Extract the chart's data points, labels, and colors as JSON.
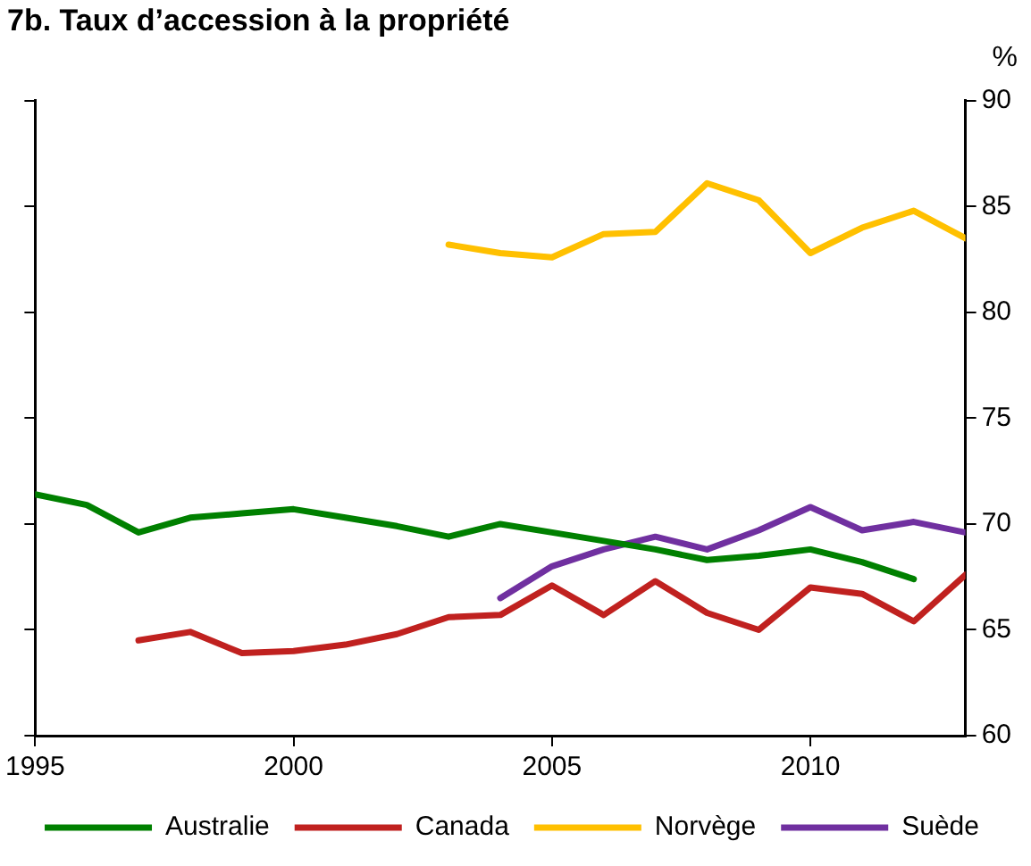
{
  "chart_data": {
    "type": "line",
    "title": "7b. Taux d’accession à la propriété",
    "ylabel": "%",
    "xlim": [
      1995,
      2013
    ],
    "xticks": [
      1995,
      2000,
      2005,
      2010
    ],
    "ylim": [
      60,
      90
    ],
    "yticks": [
      60,
      65,
      70,
      75,
      80,
      85,
      90
    ],
    "grid": false,
    "legend": "bottom",
    "marker": "none",
    "line_style": "solid",
    "series": [
      {
        "name": "Australie",
        "color": "#008000",
        "x": [
          1995,
          1996,
          1997,
          1998,
          1999,
          2000,
          2001,
          2002,
          2003,
          2004,
          2005,
          2006,
          2007,
          2008,
          2009,
          2010,
          2011,
          2012
        ],
        "values": [
          71.4,
          70.9,
          69.6,
          70.3,
          70.5,
          70.7,
          70.3,
          69.9,
          69.4,
          70.0,
          69.6,
          69.2,
          68.8,
          68.3,
          68.5,
          68.8,
          68.2,
          67.4
        ]
      },
      {
        "name": "Canada",
        "color": "#c0211f",
        "x": [
          1997,
          1998,
          1999,
          2000,
          2001,
          2002,
          2003,
          2004,
          2005,
          2006,
          2007,
          2008,
          2009,
          2010,
          2011,
          2012,
          2013
        ],
        "values": [
          64.5,
          64.9,
          63.9,
          64.0,
          64.3,
          64.8,
          65.6,
          65.7,
          67.1,
          65.7,
          67.3,
          65.8,
          65.0,
          67.0,
          66.7,
          65.4,
          67.6
        ]
      },
      {
        "name": "Norvège",
        "color": "#ffc000",
        "x": [
          2003,
          2004,
          2005,
          2006,
          2007,
          2008,
          2009,
          2010,
          2011,
          2012,
          2013
        ],
        "values": [
          83.2,
          82.8,
          82.6,
          83.7,
          83.8,
          86.1,
          85.3,
          82.8,
          84.0,
          84.8,
          83.5
        ]
      },
      {
        "name": "Suède",
        "color": "#7030a0",
        "x": [
          2004,
          2005,
          2006,
          2007,
          2008,
          2009,
          2010,
          2011,
          2012,
          2013
        ],
        "values": [
          66.5,
          68.0,
          68.8,
          69.4,
          68.8,
          69.7,
          70.8,
          69.7,
          70.1,
          69.6
        ]
      }
    ]
  }
}
